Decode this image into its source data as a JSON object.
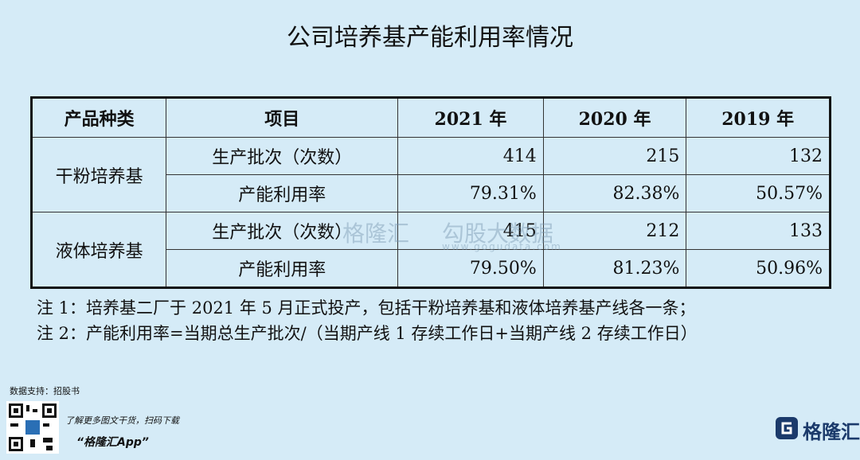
{
  "title": "公司培养基产能利用率情况",
  "table": {
    "header": [
      "产品种类",
      "项目",
      "2021 年",
      "2020 年",
      "2019 年"
    ],
    "groups": [
      {
        "category": "干粉培养基",
        "rows": [
          {
            "item": "生产批次（次数）",
            "values": [
              414,
              215,
              132
            ]
          },
          {
            "item": "产能利用率",
            "values": [
              "79.31%",
              "82.38%",
              "50.57%"
            ]
          }
        ]
      },
      {
        "category": "液体培养基",
        "rows": [
          {
            "item": "生产批次（次数）",
            "values": [
              415,
              212,
              133
            ]
          },
          {
            "item": "产能利用率",
            "values": [
              "79.50%",
              "81.23%",
              "50.96%"
            ]
          }
        ]
      }
    ]
  },
  "notes": [
    "注 1：培养基二厂于 2021 年 5 月正式投产，包括干粉培养基和液体培养基产线各一条；",
    "注 2：产能利用率=当期总生产批次/（当期产线 1 存续工作日+当期产线 2 存续工作日）"
  ],
  "watermark": {
    "brand": "格隆汇",
    "product": "勾股大数据",
    "url": "www.gogudata.com"
  },
  "footer": {
    "source": "数据支持：招股书",
    "promo": "了解更多图文干货，扫码下载",
    "app": "“格隆汇App”",
    "logo": "格隆汇"
  }
}
